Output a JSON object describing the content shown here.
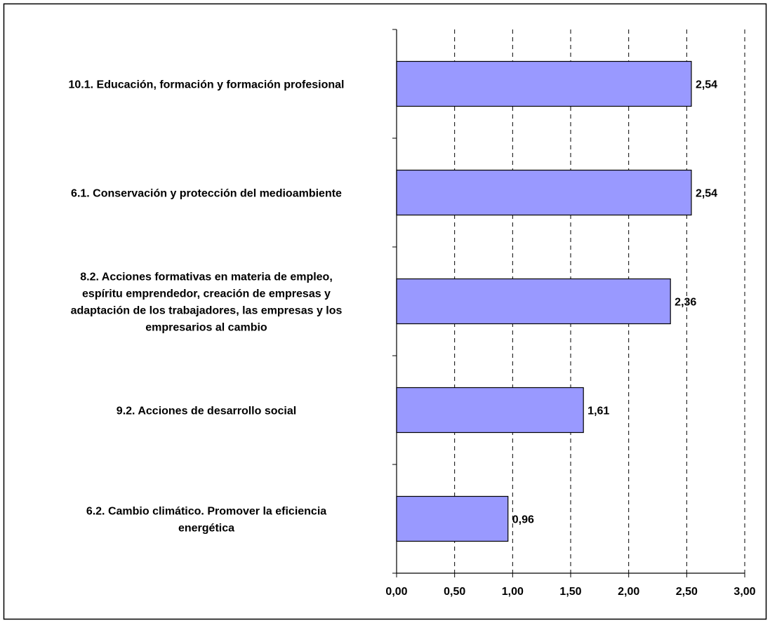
{
  "chart_data": {
    "type": "bar",
    "orientation": "horizontal",
    "title": "",
    "xlabel": "",
    "ylabel": "",
    "xlim": [
      0,
      3
    ],
    "x_ticks": [
      "0,00",
      "0,50",
      "1,00",
      "1,50",
      "2,00",
      "2,50",
      "3,00"
    ],
    "grid": "vertical dashed",
    "legend": "none",
    "bar_color": "#9999ff",
    "categories": [
      [
        "10.1. Educación, formación y formación profesional"
      ],
      [
        "6.1. Conservación y protección del medioambiente"
      ],
      [
        "8.2. Acciones formativas en materia de empleo,",
        "espíritu emprendedor, creación de empresas y",
        "adaptación de los trabajadores, las empresas y los",
        "empresarios al cambio"
      ],
      [
        "9.2. Acciones de desarrollo social"
      ],
      [
        "6.2. Cambio climático. Promover la eficiencia",
        "energética"
      ]
    ],
    "values": [
      2.54,
      2.54,
      2.36,
      1.61,
      0.96
    ],
    "value_labels": [
      "2,54",
      "2,54",
      "2,36",
      "1,61",
      "0,96"
    ]
  }
}
